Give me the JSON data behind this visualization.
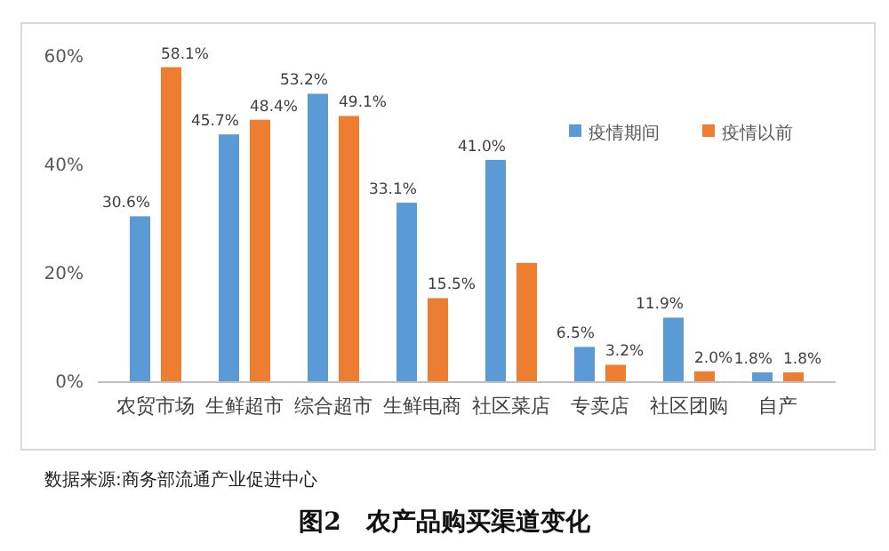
{
  "chart_data": {
    "type": "bar",
    "title": "图2　农产品购买渠道变化",
    "categories": [
      "农贸市场",
      "生鲜超市",
      "综合超市",
      "生鲜电商",
      "社区菜店",
      "专卖店",
      "社区团购",
      "自产"
    ],
    "series": [
      {
        "name": "疫情期间",
        "color": "#5b9bd5",
        "values": [
          30.6,
          45.7,
          53.2,
          33.1,
          41.0,
          6.5,
          11.9,
          1.8
        ],
        "value_labels": [
          "30.6%",
          "45.7%",
          "53.2%",
          "33.1%",
          "41.0%",
          "6.5%",
          "11.9%",
          "1.8%"
        ]
      },
      {
        "name": "疫情以前",
        "color": "#ed7d31",
        "values": [
          58.1,
          48.4,
          49.1,
          15.5,
          22,
          3.2,
          2.0,
          1.8
        ],
        "value_labels": [
          "58.1%",
          "48.4%",
          "49.1%",
          "15.5%",
          null,
          "3.2%",
          "2.0%",
          "1.8%"
        ]
      }
    ],
    "ylim": [
      0,
      60
    ],
    "yticks": [
      {
        "value": 0,
        "label": "0%"
      },
      {
        "value": 20,
        "label": "20%"
      },
      {
        "value": 40,
        "label": "40%"
      },
      {
        "value": 60,
        "label": "60%"
      }
    ],
    "grid": false,
    "legend": "top right",
    "annotations": [
      "数据来源:商务部流通产业促进中心"
    ]
  }
}
